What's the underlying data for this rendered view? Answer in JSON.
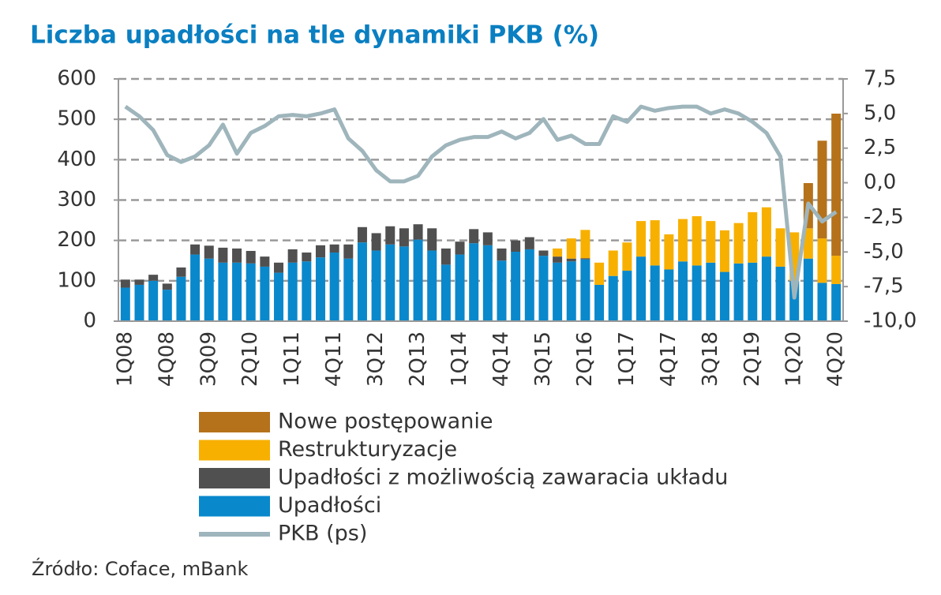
{
  "chart_data": {
    "type": "bar",
    "title": "Liczba upadłości na tle dynamiki PKB (%)",
    "source": "Źródło: Coface, mBank",
    "stacked": true,
    "grid": true,
    "legend": "bottom",
    "categories": [
      "1Q08",
      null,
      null,
      "4Q08",
      null,
      null,
      "3Q09",
      null,
      null,
      "2Q10",
      null,
      null,
      "1Q11",
      null,
      null,
      "4Q11",
      null,
      null,
      "3Q12",
      null,
      null,
      "2Q13",
      null,
      null,
      "1Q14",
      null,
      null,
      "4Q14",
      null,
      null,
      "3Q15",
      null,
      null,
      "2Q16",
      null,
      null,
      "1Q17",
      null,
      null,
      "4Q17",
      null,
      null,
      "3Q18",
      null,
      null,
      "2Q19",
      null,
      null,
      "1Q20",
      null,
      null,
      "4Q20"
    ],
    "ylim": [
      0,
      600
    ],
    "yticks": [
      0,
      100,
      200,
      300,
      400,
      500,
      600
    ],
    "y2lim": [
      -10,
      7.5
    ],
    "y2ticks": [
      {
        "value": -10,
        "label": "-10,0"
      },
      {
        "value": -7.5,
        "label": "-7,5"
      },
      {
        "value": -5,
        "label": "-5,0"
      },
      {
        "value": -2.5,
        "label": "-2,5"
      },
      {
        "value": 0,
        "label": "0,0"
      },
      {
        "value": 2.5,
        "label": "2,5"
      },
      {
        "value": 5,
        "label": "5,0"
      },
      {
        "value": 7.5,
        "label": "7,5"
      }
    ],
    "series": [
      {
        "name": "Upadłości",
        "color": "#0a88cc",
        "values": [
          83,
          90,
          100,
          78,
          110,
          165,
          155,
          145,
          145,
          143,
          135,
          120,
          145,
          148,
          158,
          170,
          155,
          195,
          175,
          190,
          185,
          202,
          175,
          140,
          165,
          193,
          188,
          150,
          172,
          178,
          162,
          145,
          148,
          153,
          90,
          112,
          125,
          160,
          138,
          128,
          148,
          138,
          145,
          122,
          143,
          145,
          160,
          135,
          100,
          155,
          95,
          92
        ]
      },
      {
        "name": "Upadłości z możliwością zawaracia układu",
        "color": "#505050",
        "values": [
          20,
          13,
          15,
          15,
          23,
          25,
          32,
          37,
          35,
          31,
          25,
          25,
          33,
          22,
          30,
          20,
          35,
          38,
          43,
          45,
          45,
          38,
          55,
          40,
          32,
          35,
          32,
          30,
          28,
          30,
          13,
          15,
          7,
          3,
          0,
          0,
          0,
          0,
          0,
          0,
          0,
          0,
          0,
          0,
          0,
          0,
          0,
          0,
          0,
          0,
          0,
          0
        ]
      },
      {
        "name": "Restrukturyzacje",
        "color": "#f7b000",
        "values": [
          0,
          0,
          0,
          0,
          0,
          0,
          0,
          0,
          0,
          0,
          0,
          0,
          0,
          0,
          0,
          0,
          0,
          0,
          0,
          0,
          0,
          0,
          0,
          0,
          0,
          0,
          0,
          0,
          0,
          0,
          0,
          20,
          50,
          70,
          55,
          63,
          70,
          88,
          112,
          87,
          105,
          122,
          103,
          103,
          100,
          125,
          122,
          95,
          120,
          75,
          110,
          70
        ]
      },
      {
        "name": "Nowe postępowanie",
        "color": "#b5721a",
        "values": [
          0,
          0,
          0,
          0,
          0,
          0,
          0,
          0,
          0,
          0,
          0,
          0,
          0,
          0,
          0,
          0,
          0,
          0,
          0,
          0,
          0,
          0,
          0,
          0,
          0,
          0,
          0,
          0,
          0,
          0,
          0,
          0,
          0,
          0,
          0,
          0,
          0,
          0,
          0,
          0,
          0,
          0,
          0,
          0,
          0,
          0,
          0,
          0,
          0,
          112,
          242,
          352
        ]
      },
      {
        "name": "PKB (ps)",
        "type": "line",
        "axis": "y2",
        "color": "#9fb5bc",
        "values": [
          5.5,
          4.8,
          3.8,
          2.0,
          1.5,
          1.9,
          2.7,
          4.2,
          2.1,
          3.6,
          4.1,
          4.8,
          4.9,
          4.8,
          5.0,
          5.3,
          3.2,
          2.3,
          0.9,
          0.1,
          0.1,
          0.5,
          1.9,
          2.7,
          3.1,
          3.3,
          3.3,
          3.7,
          3.2,
          3.6,
          4.6,
          3.1,
          3.4,
          2.8,
          2.8,
          4.8,
          4.4,
          5.5,
          5.2,
          5.4,
          5.5,
          5.5,
          5.0,
          5.3,
          5.0,
          4.4,
          3.6,
          1.9,
          -8.3,
          -1.5,
          -2.8,
          -2.1
        ]
      }
    ]
  }
}
